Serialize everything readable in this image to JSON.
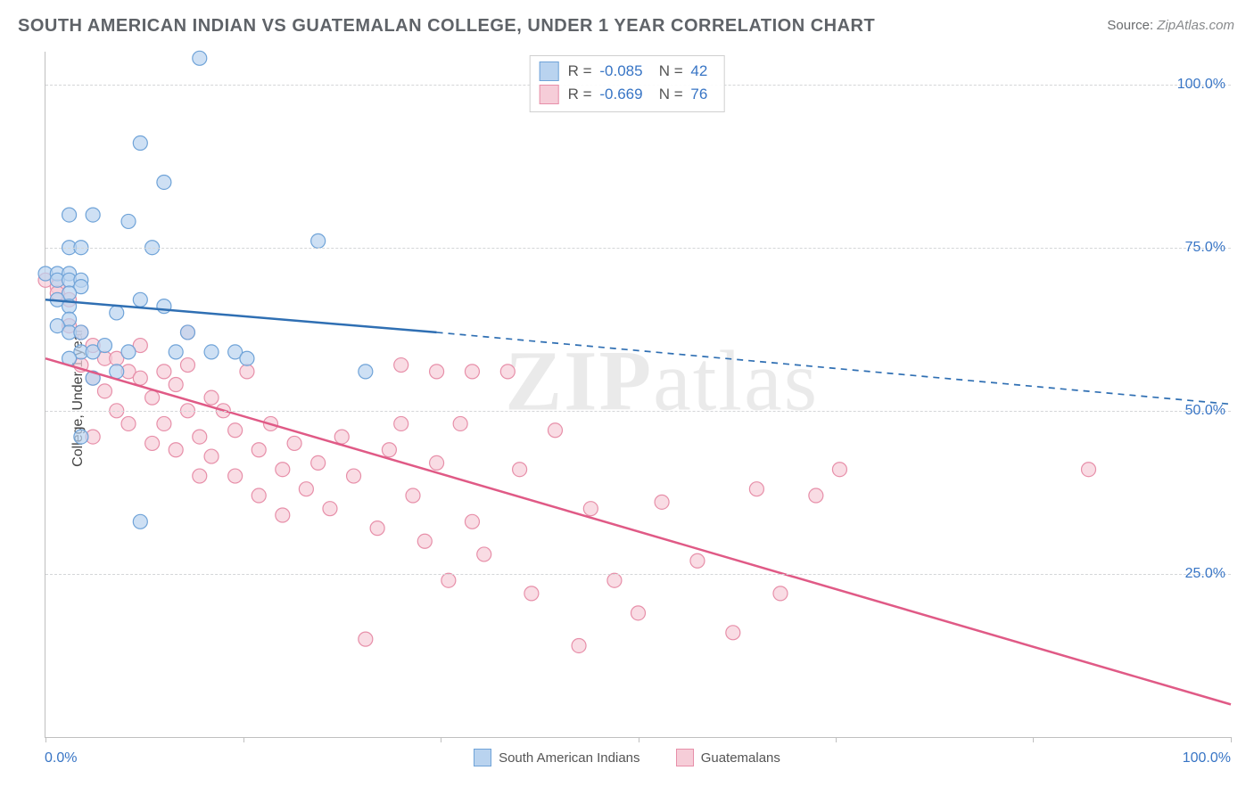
{
  "title": "SOUTH AMERICAN INDIAN VS GUATEMALAN COLLEGE, UNDER 1 YEAR CORRELATION CHART",
  "source_label": "Source:",
  "source_value": "ZipAtlas.com",
  "ylabel": "College, Under 1 year",
  "watermark_bold": "ZIP",
  "watermark_rest": "atlas",
  "chart": {
    "type": "scatter",
    "xlim": [
      0,
      100
    ],
    "ylim": [
      0,
      105
    ],
    "y_ticks": [
      25,
      50,
      75,
      100
    ],
    "y_tick_labels": [
      "25.0%",
      "50.0%",
      "75.0%",
      "100.0%"
    ],
    "x_tick_positions": [
      0,
      16.67,
      33.33,
      50,
      66.67,
      83.33,
      100
    ],
    "x_end_labels": [
      "0.0%",
      "100.0%"
    ],
    "background_color": "#ffffff",
    "grid_color": "#d4d6d8",
    "axis_color": "#bfbfbf",
    "tick_label_color": "#3875c5",
    "marker_radius": 8,
    "marker_stroke_width": 1.2,
    "regression_line_width": 2.5,
    "regression_dash": "7 6",
    "series": [
      {
        "name": "South American Indians",
        "color_fill": "#b9d3ef",
        "color_stroke": "#6fa3d8",
        "line_color": "#2f6fb3",
        "regression": {
          "x1": 0,
          "y1": 67,
          "x2_solid": 33,
          "y2_solid": 62,
          "x2": 100,
          "y2": 51
        },
        "stats": {
          "R": "-0.085",
          "N": "42"
        },
        "points": [
          [
            13,
            104
          ],
          [
            8,
            91
          ],
          [
            10,
            85
          ],
          [
            2,
            80
          ],
          [
            4,
            80
          ],
          [
            7,
            79
          ],
          [
            2,
            75
          ],
          [
            3,
            75
          ],
          [
            9,
            75
          ],
          [
            0,
            71
          ],
          [
            1,
            71
          ],
          [
            2,
            71
          ],
          [
            1,
            70
          ],
          [
            2,
            70
          ],
          [
            3,
            70
          ],
          [
            3,
            69
          ],
          [
            2,
            68
          ],
          [
            1,
            67
          ],
          [
            2,
            66
          ],
          [
            8,
            67
          ],
          [
            10,
            66
          ],
          [
            2,
            64
          ],
          [
            1,
            63
          ],
          [
            2,
            62
          ],
          [
            3,
            62
          ],
          [
            12,
            62
          ],
          [
            3,
            59
          ],
          [
            4,
            59
          ],
          [
            7,
            59
          ],
          [
            11,
            59
          ],
          [
            14,
            59
          ],
          [
            16,
            59
          ],
          [
            17,
            58
          ],
          [
            23,
            76
          ],
          [
            27,
            56
          ],
          [
            3,
            46
          ],
          [
            8,
            33
          ],
          [
            2,
            58
          ],
          [
            6,
            56
          ],
          [
            4,
            55
          ],
          [
            5,
            60
          ],
          [
            6,
            65
          ]
        ]
      },
      {
        "name": "Guatemalans",
        "color_fill": "#f6cdd8",
        "color_stroke": "#e78fa9",
        "line_color": "#e05a86",
        "regression": {
          "x1": 0,
          "y1": 58,
          "x2_solid": 100,
          "y2_solid": 5,
          "x2": 100,
          "y2": 5
        },
        "stats": {
          "R": "-0.669",
          "N": "76"
        },
        "points": [
          [
            0,
            70
          ],
          [
            1,
            69
          ],
          [
            1,
            68
          ],
          [
            2,
            67
          ],
          [
            2,
            63
          ],
          [
            3,
            62
          ],
          [
            3,
            57
          ],
          [
            4,
            60
          ],
          [
            4,
            55
          ],
          [
            5,
            58
          ],
          [
            5,
            53
          ],
          [
            6,
            58
          ],
          [
            6,
            50
          ],
          [
            7,
            56
          ],
          [
            7,
            48
          ],
          [
            8,
            55
          ],
          [
            8,
            60
          ],
          [
            9,
            52
          ],
          [
            9,
            45
          ],
          [
            10,
            56
          ],
          [
            10,
            48
          ],
          [
            11,
            54
          ],
          [
            11,
            44
          ],
          [
            12,
            50
          ],
          [
            12,
            57
          ],
          [
            13,
            46
          ],
          [
            13,
            40
          ],
          [
            14,
            52
          ],
          [
            14,
            43
          ],
          [
            15,
            50
          ],
          [
            16,
            47
          ],
          [
            16,
            40
          ],
          [
            17,
            56
          ],
          [
            18,
            44
          ],
          [
            18,
            37
          ],
          [
            19,
            48
          ],
          [
            20,
            41
          ],
          [
            20,
            34
          ],
          [
            21,
            45
          ],
          [
            22,
            38
          ],
          [
            23,
            42
          ],
          [
            24,
            35
          ],
          [
            25,
            46
          ],
          [
            26,
            40
          ],
          [
            27,
            15
          ],
          [
            28,
            32
          ],
          [
            29,
            44
          ],
          [
            30,
            57
          ],
          [
            31,
            37
          ],
          [
            32,
            30
          ],
          [
            33,
            42
          ],
          [
            34,
            24
          ],
          [
            35,
            48
          ],
          [
            36,
            33
          ],
          [
            37,
            28
          ],
          [
            39,
            56
          ],
          [
            40,
            41
          ],
          [
            41,
            22
          ],
          [
            43,
            47
          ],
          [
            45,
            14
          ],
          [
            46,
            35
          ],
          [
            48,
            24
          ],
          [
            50,
            19
          ],
          [
            52,
            36
          ],
          [
            55,
            27
          ],
          [
            58,
            16
          ],
          [
            60,
            38
          ],
          [
            62,
            22
          ],
          [
            67,
            41
          ],
          [
            65,
            37
          ],
          [
            88,
            41
          ],
          [
            30,
            48
          ],
          [
            33,
            56
          ],
          [
            36,
            56
          ],
          [
            12,
            62
          ],
          [
            4,
            46
          ]
        ]
      }
    ]
  },
  "bottom_legend_items": [
    {
      "label": "South American Indians",
      "fill": "#b9d3ef",
      "stroke": "#6fa3d8"
    },
    {
      "label": "Guatemalans",
      "fill": "#f6cdd8",
      "stroke": "#e78fa9"
    }
  ],
  "stat_legend_prefix_R": "R =",
  "stat_legend_prefix_N": "N ="
}
